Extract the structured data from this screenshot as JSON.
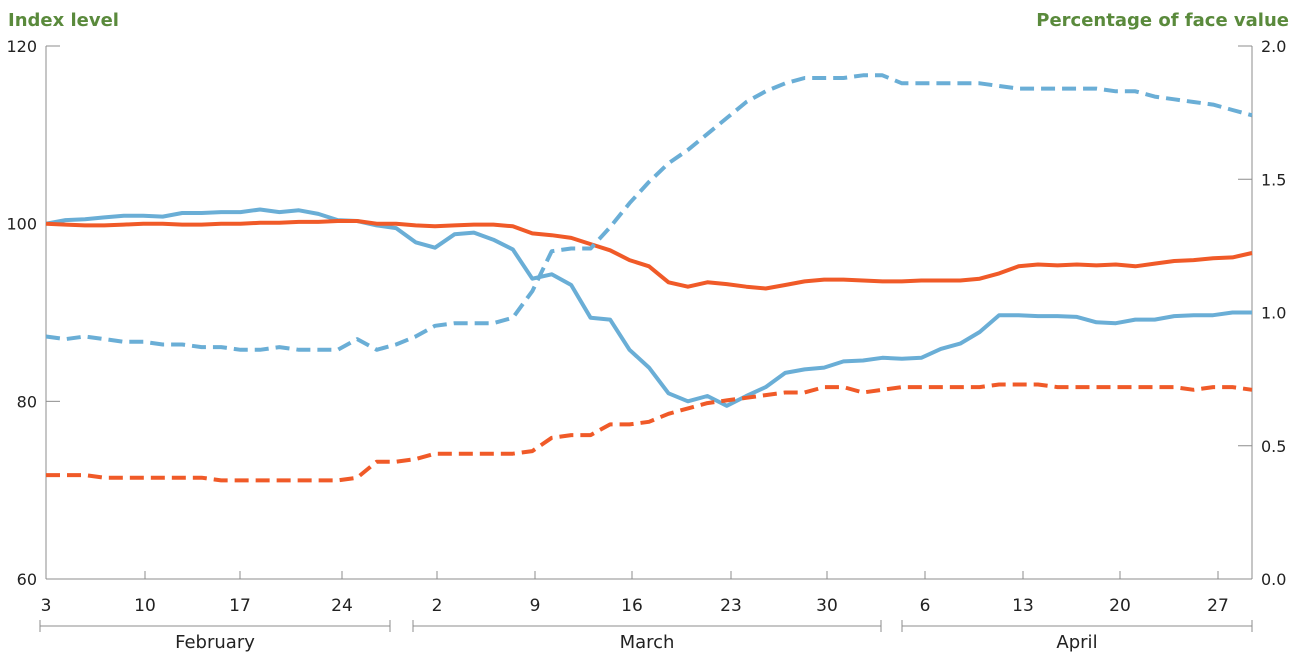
{
  "chart_data": {
    "type": "line",
    "left_axis": {
      "title": "Index level",
      "ylim": [
        60,
        120
      ],
      "ticks": [
        60,
        80,
        100,
        120
      ]
    },
    "right_axis": {
      "title": "Percentage of face value",
      "ylim": [
        0.0,
        2.0
      ],
      "ticks": [
        "0.0",
        "0.5",
        "1.0",
        "1.5",
        "2.0"
      ]
    },
    "x_ticks": [
      "3",
      "10",
      "17",
      "24",
      "2",
      "9",
      "16",
      "23",
      "30",
      "6",
      "13",
      "20",
      "27"
    ],
    "months": [
      "February",
      "March",
      "April"
    ],
    "grid": false,
    "legend": "none",
    "colors": {
      "blue": "#6aaed6",
      "orange": "#f05a28",
      "axis_title": "#5a8a3c"
    },
    "x_dates": [
      "Feb 3",
      "Feb 4",
      "Feb 5",
      "Feb 6",
      "Feb 7",
      "Feb 10",
      "Feb 11",
      "Feb 12",
      "Feb 13",
      "Feb 14",
      "Feb 17",
      "Feb 18",
      "Feb 19",
      "Feb 20",
      "Feb 21",
      "Feb 24",
      "Feb 25",
      "Feb 26",
      "Feb 27",
      "Feb 28",
      "Mar 2",
      "Mar 3",
      "Mar 4",
      "Mar 5",
      "Mar 6",
      "Mar 9",
      "Mar 10",
      "Mar 11",
      "Mar 12",
      "Mar 13",
      "Mar 16",
      "Mar 17",
      "Mar 18",
      "Mar 19",
      "Mar 20",
      "Mar 23",
      "Mar 24",
      "Mar 25",
      "Mar 26",
      "Mar 27",
      "Mar 30",
      "Mar 31",
      "Apr 1",
      "Apr 2",
      "Apr 3",
      "Apr 6",
      "Apr 7",
      "Apr 8",
      "Apr 9",
      "Apr 10",
      "Apr 13",
      "Apr 14",
      "Apr 15",
      "Apr 16",
      "Apr 17",
      "Apr 20",
      "Apr 21",
      "Apr 22",
      "Apr 23",
      "Apr 24",
      "Apr 27",
      "Apr 28",
      "Apr 29"
    ],
    "series": [
      {
        "color": "blue",
        "style": "solid",
        "axis": "left",
        "values": [
          100.0,
          100.4,
          100.5,
          100.7,
          100.9,
          100.9,
          100.8,
          101.2,
          101.2,
          101.3,
          101.3,
          101.6,
          101.3,
          101.5,
          101.1,
          100.4,
          100.3,
          99.8,
          99.5,
          97.9,
          97.3,
          98.8,
          99.0,
          98.2,
          97.1,
          93.8,
          94.3,
          93.1,
          89.4,
          89.2,
          85.8,
          83.8,
          80.9,
          80.0,
          80.6,
          79.5,
          80.6,
          81.6,
          83.2,
          83.6,
          83.8,
          84.5,
          84.6,
          84.9,
          84.8,
          84.9,
          85.9,
          86.5,
          87.8,
          89.7,
          89.7,
          89.6,
          89.6,
          89.5,
          88.9,
          88.8,
          89.2,
          89.2,
          89.6,
          89.7,
          89.7,
          90.0,
          90.0
        ]
      },
      {
        "color": "orange",
        "style": "solid",
        "axis": "left",
        "values": [
          100.0,
          99.9,
          99.8,
          99.8,
          99.9,
          100.0,
          100.0,
          99.9,
          99.9,
          100.0,
          100.0,
          100.1,
          100.1,
          100.2,
          100.2,
          100.3,
          100.3,
          100.0,
          100.0,
          99.8,
          99.7,
          99.8,
          99.9,
          99.9,
          99.7,
          98.9,
          98.7,
          98.4,
          97.7,
          97.0,
          95.9,
          95.2,
          93.4,
          92.9,
          93.4,
          93.2,
          92.9,
          92.7,
          93.1,
          93.5,
          93.7,
          93.7,
          93.6,
          93.5,
          93.5,
          93.6,
          93.6,
          93.6,
          93.8,
          94.4,
          95.2,
          95.4,
          95.3,
          95.4,
          95.3,
          95.4,
          95.2,
          95.5,
          95.8,
          95.9,
          96.1,
          96.2,
          96.7
        ]
      },
      {
        "color": "blue",
        "style": "dashed",
        "axis": "right",
        "values": [
          0.91,
          0.9,
          0.91,
          0.9,
          0.89,
          0.89,
          0.88,
          0.88,
          0.87,
          0.87,
          0.86,
          0.86,
          0.87,
          0.86,
          0.86,
          0.86,
          0.9,
          0.86,
          0.88,
          0.91,
          0.95,
          0.96,
          0.96,
          0.96,
          0.98,
          1.08,
          1.23,
          1.24,
          1.24,
          1.32,
          1.41,
          1.49,
          1.56,
          1.61,
          1.67,
          1.73,
          1.79,
          1.83,
          1.86,
          1.88,
          1.88,
          1.88,
          1.89,
          1.89,
          1.86,
          1.86,
          1.86,
          1.86,
          1.86,
          1.85,
          1.84,
          1.84,
          1.84,
          1.84,
          1.84,
          1.83,
          1.83,
          1.81,
          1.8,
          1.79,
          1.78,
          1.76,
          1.74
        ]
      },
      {
        "color": "orange",
        "style": "dashed",
        "axis": "right",
        "values": [
          0.39,
          0.39,
          0.39,
          0.38,
          0.38,
          0.38,
          0.38,
          0.38,
          0.38,
          0.37,
          0.37,
          0.37,
          0.37,
          0.37,
          0.37,
          0.37,
          0.38,
          0.44,
          0.44,
          0.45,
          0.47,
          0.47,
          0.47,
          0.47,
          0.47,
          0.48,
          0.53,
          0.54,
          0.54,
          0.58,
          0.58,
          0.59,
          0.62,
          0.64,
          0.66,
          0.67,
          0.68,
          0.69,
          0.7,
          0.7,
          0.72,
          0.72,
          0.7,
          0.71,
          0.72,
          0.72,
          0.72,
          0.72,
          0.72,
          0.73,
          0.73,
          0.73,
          0.72,
          0.72,
          0.72,
          0.72,
          0.72,
          0.72,
          0.72,
          0.71,
          0.72,
          0.72,
          0.71
        ]
      }
    ]
  }
}
